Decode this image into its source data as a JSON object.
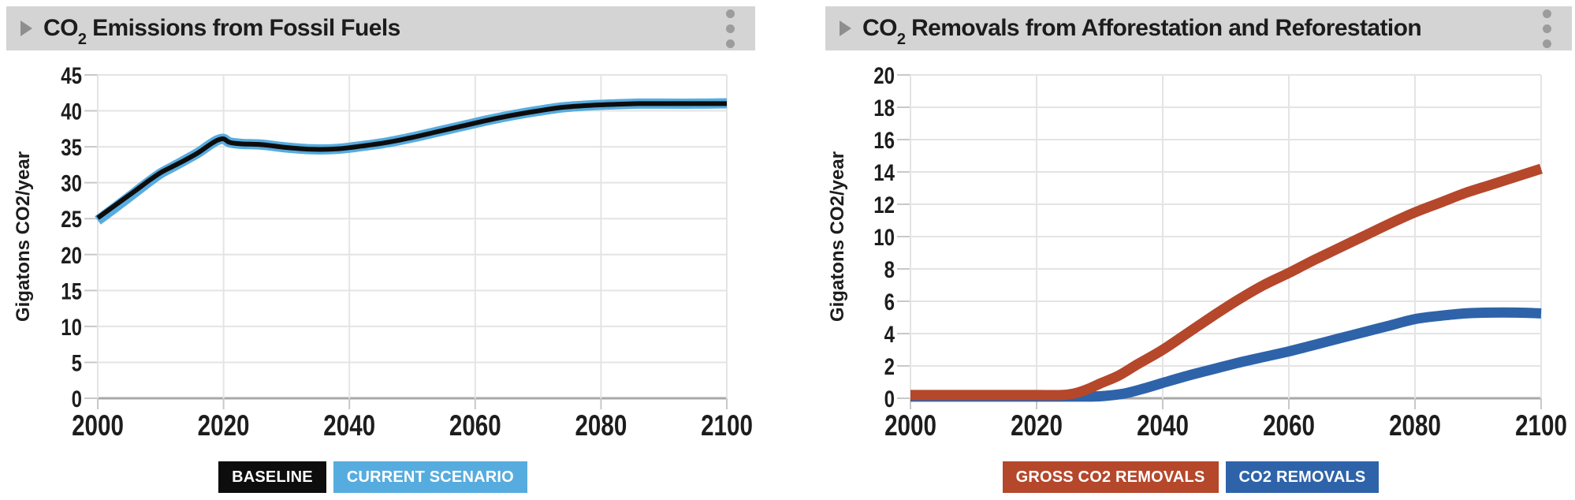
{
  "page": {
    "background": "#ffffff"
  },
  "colors": {
    "header_bg": "#d4d4d4",
    "header_text": "#1c1c1c",
    "icon_gray": "#8e8e8e",
    "kebab_dot_gray": "#9c9c9c",
    "grid": "#e4e4e4",
    "axis_baseline": "#a8a8a8",
    "tick_mark": "#c8c8c8",
    "tick_text": "#1d1d1d",
    "baseline_series": "#0d0d0d",
    "current_scenario_series": "#56ACDF",
    "gross_removals_series": "#B5472B",
    "co2_removals_series": "#2E63A9"
  },
  "icons": {
    "expand": "triangle-right-icon",
    "menu": "kebab-vertical-icon"
  },
  "chart_data": [
    {
      "type": "line",
      "title": "CO2 Emissions from Fossil Fuels",
      "title_parts": [
        "CO",
        "2",
        " Emissions from Fossil Fuels"
      ],
      "ylabel": "Gigatons CO2/year",
      "xlabel": "",
      "xlim": [
        2000,
        2100
      ],
      "ylim": [
        0,
        45
      ],
      "xtick_step": 20,
      "ytick_step": 5,
      "grid": true,
      "legend_position": "bottom",
      "draw_order": [
        1,
        0
      ],
      "series": [
        {
          "name": "BASELINE",
          "id": "baseline-line",
          "color": "#0d0d0d",
          "width": 6,
          "points": [
            [
              2000,
              25.1
            ],
            [
              2003,
              27.0
            ],
            [
              2006,
              28.9
            ],
            [
              2008,
              30.2
            ],
            [
              2010,
              31.4
            ],
            [
              2012,
              32.3
            ],
            [
              2014,
              33.2
            ],
            [
              2016,
              34.2
            ],
            [
              2018,
              35.4
            ],
            [
              2019,
              35.9
            ],
            [
              2020,
              36.1
            ],
            [
              2021,
              35.6
            ],
            [
              2023,
              35.4
            ],
            [
              2026,
              35.3
            ],
            [
              2030,
              34.9
            ],
            [
              2034,
              34.65
            ],
            [
              2038,
              34.7
            ],
            [
              2042,
              35.1
            ],
            [
              2046,
              35.6
            ],
            [
              2050,
              36.3
            ],
            [
              2054,
              37.1
            ],
            [
              2058,
              37.9
            ],
            [
              2062,
              38.7
            ],
            [
              2066,
              39.4
            ],
            [
              2070,
              40.0
            ],
            [
              2074,
              40.5
            ],
            [
              2078,
              40.75
            ],
            [
              2082,
              40.9
            ],
            [
              2086,
              41.0
            ],
            [
              2090,
              41.0
            ],
            [
              2095,
              41.0
            ],
            [
              2100,
              41.0
            ]
          ]
        },
        {
          "name": "CURRENT SCENARIO",
          "id": "current-scenario-line",
          "color": "#56ACDF",
          "width": 13,
          "points": [
            [
              2000,
              24.75
            ],
            [
              2003,
              26.7
            ],
            [
              2006,
              28.7
            ],
            [
              2008,
              30.05
            ],
            [
              2010,
              31.3
            ],
            [
              2012,
              32.25
            ],
            [
              2014,
              33.2
            ],
            [
              2016,
              34.2
            ],
            [
              2018,
              35.4
            ],
            [
              2019,
              35.9
            ],
            [
              2020,
              36.1
            ],
            [
              2021,
              35.6
            ],
            [
              2023,
              35.4
            ],
            [
              2026,
              35.3
            ],
            [
              2030,
              34.9
            ],
            [
              2034,
              34.65
            ],
            [
              2038,
              34.7
            ],
            [
              2042,
              35.1
            ],
            [
              2046,
              35.6
            ],
            [
              2050,
              36.3
            ],
            [
              2054,
              37.1
            ],
            [
              2058,
              37.9
            ],
            [
              2062,
              38.7
            ],
            [
              2066,
              39.4
            ],
            [
              2070,
              40.0
            ],
            [
              2074,
              40.5
            ],
            [
              2078,
              40.75
            ],
            [
              2082,
              40.9
            ],
            [
              2086,
              41.0
            ],
            [
              2090,
              41.0
            ],
            [
              2095,
              41.0
            ],
            [
              2100,
              41.05
            ]
          ]
        }
      ]
    },
    {
      "type": "line",
      "title": "CO2 Removals from Afforestation and Reforestation",
      "title_parts": [
        "CO",
        "2",
        " Removals from Afforestation and Reforestation"
      ],
      "ylabel": "Gigatons CO2/year",
      "xlabel": "",
      "xlim": [
        2000,
        2100
      ],
      "ylim": [
        0,
        20
      ],
      "xtick_step": 20,
      "ytick_step": 2,
      "grid": true,
      "legend_position": "bottom",
      "draw_order": [
        1,
        0
      ],
      "series": [
        {
          "name": "GROSS CO2 REMOVALS",
          "id": "gross-co2-removals-line",
          "color": "#B5472B",
          "width": 13,
          "points": [
            [
              2000,
              0.2
            ],
            [
              2005,
              0.2
            ],
            [
              2010,
              0.2
            ],
            [
              2015,
              0.2
            ],
            [
              2020,
              0.2
            ],
            [
              2024,
              0.2
            ],
            [
              2026,
              0.3
            ],
            [
              2028,
              0.55
            ],
            [
              2030,
              0.9
            ],
            [
              2033,
              1.4
            ],
            [
              2036,
              2.1
            ],
            [
              2040,
              3.0
            ],
            [
              2044,
              4.05
            ],
            [
              2048,
              5.1
            ],
            [
              2052,
              6.1
            ],
            [
              2056,
              7.0
            ],
            [
              2060,
              7.75
            ],
            [
              2064,
              8.55
            ],
            [
              2068,
              9.3
            ],
            [
              2072,
              10.05
            ],
            [
              2076,
              10.8
            ],
            [
              2080,
              11.5
            ],
            [
              2084,
              12.1
            ],
            [
              2088,
              12.7
            ],
            [
              2092,
              13.2
            ],
            [
              2096,
              13.7
            ],
            [
              2100,
              14.2
            ]
          ]
        },
        {
          "name": "CO2 REMOVALS",
          "id": "co2-removals-line",
          "color": "#2E63A9",
          "width": 13,
          "points": [
            [
              2000,
              0.1
            ],
            [
              2010,
              0.1
            ],
            [
              2020,
              0.1
            ],
            [
              2028,
              0.1
            ],
            [
              2031,
              0.15
            ],
            [
              2034,
              0.3
            ],
            [
              2037,
              0.6
            ],
            [
              2040,
              0.95
            ],
            [
              2044,
              1.4
            ],
            [
              2048,
              1.8
            ],
            [
              2052,
              2.2
            ],
            [
              2056,
              2.55
            ],
            [
              2060,
              2.9
            ],
            [
              2064,
              3.3
            ],
            [
              2068,
              3.7
            ],
            [
              2072,
              4.1
            ],
            [
              2076,
              4.5
            ],
            [
              2080,
              4.9
            ],
            [
              2084,
              5.1
            ],
            [
              2088,
              5.25
            ],
            [
              2092,
              5.3
            ],
            [
              2096,
              5.3
            ],
            [
              2100,
              5.25
            ]
          ]
        }
      ]
    }
  ]
}
